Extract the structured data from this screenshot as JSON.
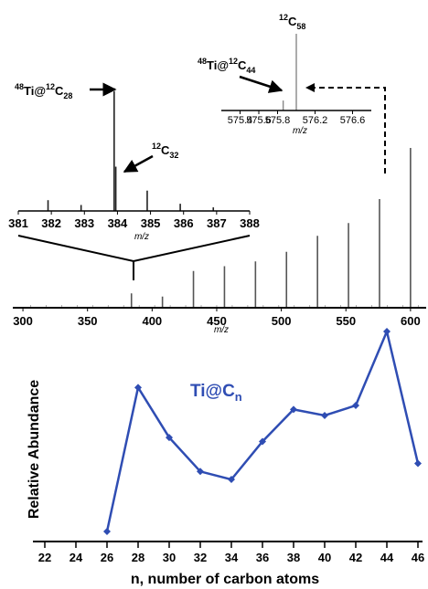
{
  "chart_data": [
    {
      "type": "line",
      "title": "",
      "xlabel": "m/z",
      "xlim": [
        295,
        610
      ],
      "xticks": [
        "300",
        "350",
        "400",
        "450",
        "500",
        "550",
        "600"
      ],
      "peaks": [
        {
          "x": 384,
          "y": 0.09
        },
        {
          "x": 408,
          "y": 0.07
        },
        {
          "x": 432,
          "y": 0.23
        },
        {
          "x": 456,
          "y": 0.26
        },
        {
          "x": 480,
          "y": 0.29
        },
        {
          "x": 504,
          "y": 0.35
        },
        {
          "x": 528,
          "y": 0.45
        },
        {
          "x": 552,
          "y": 0.53
        },
        {
          "x": 576,
          "y": 0.68
        },
        {
          "x": 600,
          "y": 1.0
        }
      ]
    },
    {
      "type": "line",
      "title": "",
      "xlabel": "m/z",
      "xlim": [
        381,
        388
      ],
      "xticks": [
        "381",
        "382",
        "383",
        "384",
        "385",
        "386",
        "387",
        "388"
      ],
      "peaks": [
        {
          "x": 381.9,
          "y": 0.09
        },
        {
          "x": 382.9,
          "y": 0.05
        },
        {
          "x": 383.9,
          "y": 1.0
        },
        {
          "x": 383.95,
          "y": 0.37
        },
        {
          "x": 384.9,
          "y": 0.17
        },
        {
          "x": 385.9,
          "y": 0.06
        },
        {
          "x": 386.9,
          "y": 0.03
        }
      ]
    },
    {
      "type": "line",
      "title": "",
      "xlabel": "m/z",
      "xlim": [
        575.2,
        576.8
      ],
      "xticks": [
        "575.4",
        "575.6",
        "575.8",
        "576.2",
        "576.6"
      ],
      "peaks": [
        {
          "x": 575.86,
          "y": 0.13
        },
        {
          "x": 576.0,
          "y": 1.0
        }
      ]
    },
    {
      "type": "line",
      "title": "",
      "xlabel": "n, number of carbon atoms",
      "ylabel": "Relative Abundance",
      "xlim": [
        22,
        46
      ],
      "xticks": [
        "22",
        "24",
        "26",
        "28",
        "30",
        "32",
        "34",
        "36",
        "38",
        "40",
        "42",
        "44",
        "46"
      ],
      "series": [
        {
          "name": "Ti@Cn",
          "color": "#2f4db3",
          "x": [
            26,
            28,
            30,
            32,
            34,
            36,
            38,
            40,
            42,
            44,
            46
          ],
          "y": [
            0.0,
            0.72,
            0.47,
            0.3,
            0.26,
            0.45,
            0.61,
            0.58,
            0.63,
            1.0,
            0.34
          ]
        }
      ]
    }
  ],
  "annotations": {
    "inset1_peak_a": {
      "sup": "48",
      "main": "Ti@",
      "sup2": "12",
      "main2": "C",
      "sub": "28"
    },
    "inset1_peak_b": {
      "sup": "12",
      "main": "C",
      "sub": "32"
    },
    "inset2_peak_a": {
      "sup": "48",
      "main": "Ti@",
      "sup2": "12",
      "main2": "C",
      "sub": "44"
    },
    "inset2_peak_b": {
      "sup": "12",
      "main": "C",
      "sub": "58"
    },
    "series_label": {
      "main": "Ti@C",
      "sub": "n"
    }
  },
  "colors": {
    "series": "#2f4db3",
    "axis": "#000000",
    "spectrum": "#555555",
    "inset2_spectrum": "#888888"
  }
}
